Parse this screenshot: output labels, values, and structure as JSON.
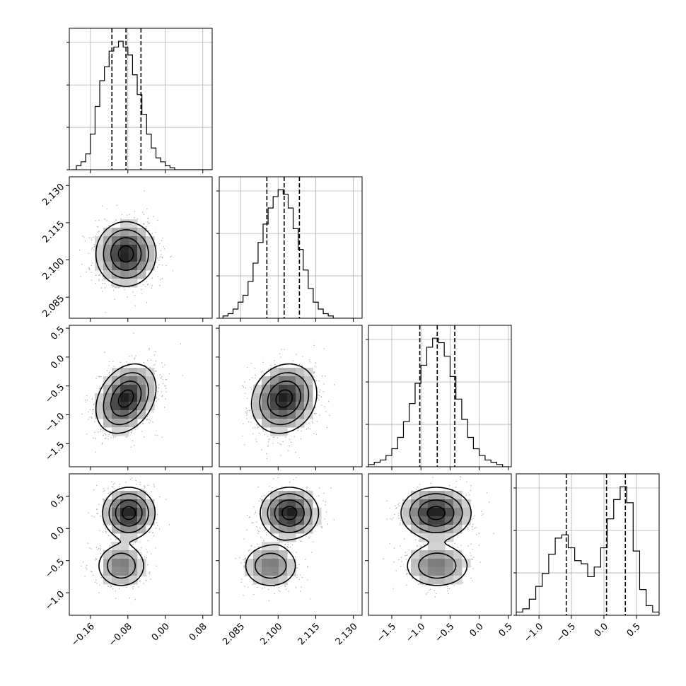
{
  "chart_data": {
    "type": "corner",
    "parameters": [
      {
        "range": [
          -0.205,
          0.1
        ],
        "ticks": [
          -0.16,
          -0.08,
          0.0,
          0.08
        ],
        "tick_labels": [
          "−0.16",
          "−0.08",
          "0.00",
          "0.08"
        ],
        "quantiles": [
          -0.114,
          -0.084,
          -0.052
        ],
        "hist_bins": [
          -0.2,
          -0.19,
          -0.18,
          -0.17,
          -0.16,
          -0.15,
          -0.14,
          -0.13,
          -0.12,
          -0.11,
          -0.1,
          -0.09,
          -0.08,
          -0.07,
          -0.06,
          -0.05,
          -0.04,
          -0.03,
          -0.02,
          -0.01,
          0.0,
          0.01,
          0.02,
          0.03,
          0.04,
          0.05,
          0.06,
          0.07,
          0.08,
          0.09,
          0.1
        ],
        "hist_counts": [
          0,
          2,
          4,
          8,
          18,
          32,
          45,
          52,
          60,
          62,
          65,
          62,
          58,
          48,
          38,
          28,
          18,
          11,
          6,
          4,
          2,
          1,
          0,
          0,
          0,
          0,
          0,
          0,
          0,
          0
        ]
      },
      {
        "range": [
          2.0765,
          2.1335
        ],
        "ticks": [
          2.085,
          2.1,
          2.115,
          2.13
        ],
        "tick_labels": [
          "2.085",
          "2.100",
          "2.115",
          "2.130"
        ],
        "quantiles": [
          2.0955,
          2.1024,
          2.1085
        ],
        "hist_bins": [
          2.078,
          2.08,
          2.082,
          2.084,
          2.086,
          2.088,
          2.09,
          2.092,
          2.094,
          2.096,
          2.098,
          2.1,
          2.102,
          2.104,
          2.106,
          2.108,
          2.11,
          2.112,
          2.114,
          2.116,
          2.118,
          2.12,
          2.122,
          2.124,
          2.126,
          2.128,
          2.13
        ],
        "hist_counts": [
          1,
          2,
          4,
          7,
          10,
          16,
          24,
          33,
          41,
          48,
          53,
          56,
          54,
          48,
          39,
          30,
          21,
          13,
          7,
          4,
          2,
          1,
          0,
          0,
          0,
          0
        ]
      },
      {
        "range": [
          -1.9,
          0.55
        ],
        "ticks": [
          -1.5,
          -1.0,
          -0.5,
          0.0,
          0.5
        ],
        "tick_labels": [
          "−1.5",
          "−1.0",
          "−0.5",
          "0.0",
          "0.5"
        ],
        "quantiles": [
          -1.02,
          -0.72,
          -0.42
        ],
        "hist_bins": [
          -1.9,
          -1.8,
          -1.7,
          -1.6,
          -1.5,
          -1.4,
          -1.3,
          -1.2,
          -1.1,
          -1.0,
          -0.9,
          -0.8,
          -0.7,
          -0.6,
          -0.5,
          -0.4,
          -0.3,
          -0.2,
          -0.1,
          0.0,
          0.1,
          0.2,
          0.3,
          0.4,
          0.5
        ],
        "hist_counts": [
          1,
          2,
          3,
          5,
          8,
          13,
          20,
          28,
          37,
          45,
          53,
          57,
          55,
          49,
          40,
          30,
          21,
          13,
          8,
          5,
          3,
          2,
          1,
          0
        ]
      },
      {
        "range": [
          -1.35,
          0.85
        ],
        "ticks": [
          -1.0,
          -0.5,
          0.0,
          0.5
        ],
        "tick_labels": [
          "−1.0",
          "−0.5",
          "0.0",
          "0.5"
        ],
        "quantiles": [
          -0.58,
          0.04,
          0.33
        ],
        "hist_bins": [
          -1.35,
          -1.25,
          -1.15,
          -1.05,
          -0.95,
          -0.85,
          -0.75,
          -0.65,
          -0.55,
          -0.45,
          -0.35,
          -0.25,
          -0.15,
          -0.05,
          0.05,
          0.15,
          0.25,
          0.35,
          0.45,
          0.55,
          0.65,
          0.75,
          0.85
        ],
        "hist_counts": [
          1,
          2,
          5,
          9,
          13,
          19,
          24,
          25,
          21,
          17,
          16,
          12,
          15,
          21,
          30,
          36,
          40,
          35,
          20,
          8,
          3,
          1
        ]
      }
    ],
    "pairs": [
      {
        "row": 1,
        "col": 0,
        "components": [
          {
            "weight": 1.0,
            "mean": [
              -0.084,
              2.1024
            ],
            "sd": [
              0.032,
              0.0065
            ],
            "rho": 0.0
          }
        ]
      },
      {
        "row": 2,
        "col": 0,
        "components": [
          {
            "weight": 1.0,
            "mean": [
              -0.084,
              -0.72
            ],
            "sd": [
              0.032,
              0.3
            ],
            "rho": 0.3
          }
        ]
      },
      {
        "row": 2,
        "col": 1,
        "components": [
          {
            "weight": 1.0,
            "mean": [
              2.1024,
              -0.72
            ],
            "sd": [
              0.0065,
              0.3
            ],
            "rho": 0.15
          }
        ]
      },
      {
        "row": 3,
        "col": 0,
        "components": [
          {
            "weight": 0.66,
            "mean": [
              -0.078,
              0.24
            ],
            "sd": [
              0.028,
              0.2
            ],
            "rho": 0.0
          },
          {
            "weight": 0.34,
            "mean": [
              -0.094,
              -0.58
            ],
            "sd": [
              0.028,
              0.18
            ],
            "rho": 0.0
          }
        ]
      },
      {
        "row": 3,
        "col": 1,
        "components": [
          {
            "weight": 0.66,
            "mean": [
              2.1045,
              0.24
            ],
            "sd": [
              0.0058,
              0.2
            ],
            "rho": 0.0
          },
          {
            "weight": 0.34,
            "mean": [
              2.097,
              -0.58
            ],
            "sd": [
              0.0058,
              0.18
            ],
            "rho": 0.0
          }
        ]
      },
      {
        "row": 3,
        "col": 2,
        "components": [
          {
            "weight": 0.66,
            "mean": [
              -0.74,
              0.24
            ],
            "sd": [
              0.3,
              0.2
            ],
            "rho": 0.0
          },
          {
            "weight": 0.34,
            "mean": [
              -0.72,
              -0.58
            ],
            "sd": [
              0.3,
              0.18
            ],
            "rho": 0.0
          }
        ]
      }
    ],
    "grid": true,
    "title": "",
    "xlabel": "",
    "ylabel": ""
  }
}
